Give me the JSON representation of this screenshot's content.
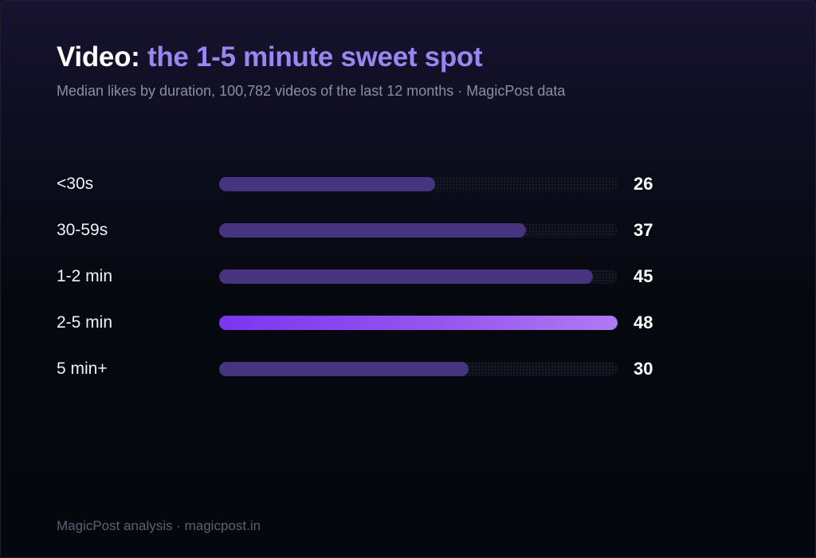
{
  "header": {
    "title_prefix": "Video:",
    "title_accent": "the 1-5 minute sweet spot",
    "subtitle": "Median likes by duration, 100,782 videos of the last 12 months · MagicPost data"
  },
  "chart_data": {
    "type": "bar",
    "orientation": "horizontal",
    "title": "Video: the 1-5 minute sweet spot",
    "subtitle": "Median likes by duration, 100,782 videos of the last 12 months · MagicPost data",
    "categories": [
      "<30s",
      "30-59s",
      "1-2 min",
      "2-5 min",
      "5 min+"
    ],
    "values": [
      26,
      37,
      45,
      48,
      30
    ],
    "xlim": [
      0,
      48
    ],
    "highlight": "2-5 min",
    "data_labels": true,
    "grid": false,
    "colors": {
      "bar": "#47347f",
      "highlight_start": "#7a36f0",
      "highlight_end": "#b079f2",
      "track": "#0d0f18",
      "title_accent": "#9b85f0"
    }
  },
  "footer": {
    "text": "MagicPost analysis · magicpost.in"
  }
}
